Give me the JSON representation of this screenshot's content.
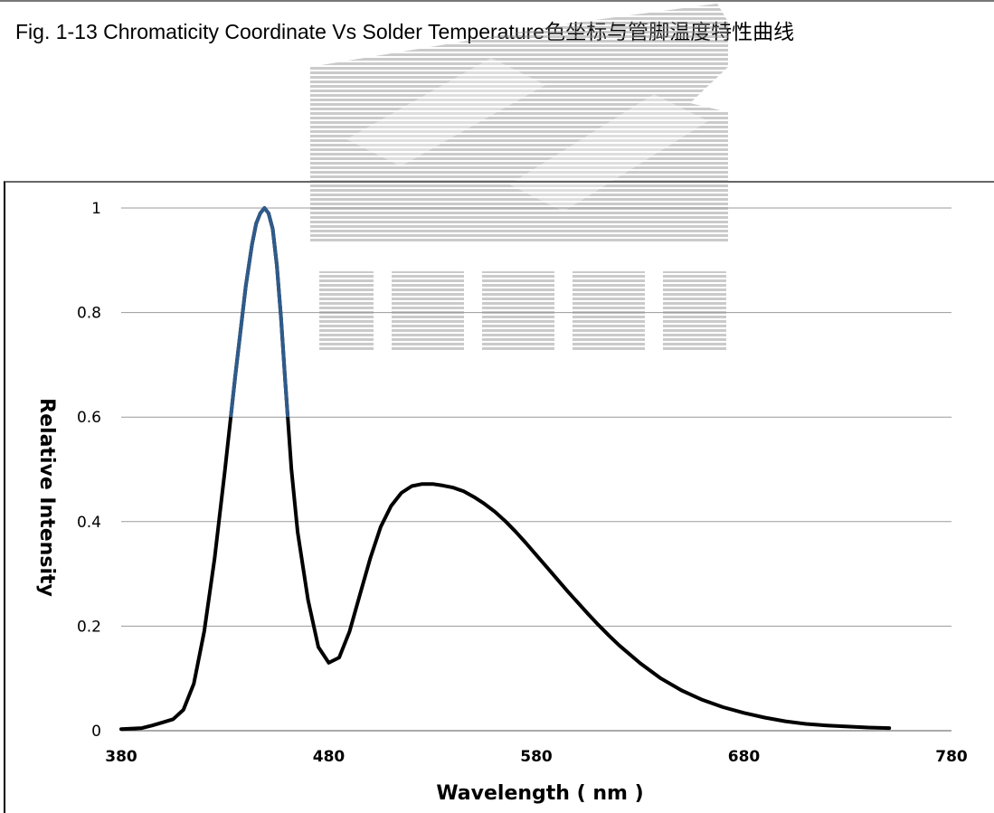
{
  "figure": {
    "caption": "Fig. 1-13 Chromaticity Coordinate Vs Solder Temperature色坐标与管脚温度特性曲线"
  },
  "colors": {
    "peak_segment": "#2f5a8a",
    "curve": "#000000",
    "gridline": "#9a9a9a"
  },
  "chart_data": {
    "type": "line",
    "title": "",
    "xlabel": "Wavelength ( nm )",
    "ylabel": "Relative Intensity",
    "xlim": [
      380,
      780
    ],
    "ylim": [
      0,
      1
    ],
    "xticks": [
      "380",
      "480",
      "580",
      "680",
      "780"
    ],
    "yticks": [
      "0",
      "0.2",
      "0.4",
      "0.6",
      "0.8",
      "1"
    ],
    "grid": "horizontal",
    "legend": "none",
    "series": [
      {
        "x": [
          380,
          390,
          395,
          400,
          405,
          410,
          415,
          420,
          425,
          430,
          435,
          440,
          443,
          445,
          447,
          449,
          451,
          453,
          455,
          457,
          459,
          462,
          465,
          470,
          475,
          480,
          485,
          490,
          495,
          500,
          505,
          510,
          515,
          520,
          525,
          530,
          535,
          540,
          545,
          550,
          555,
          560,
          565,
          570,
          575,
          580,
          585,
          590,
          595,
          600,
          605,
          610,
          615,
          620,
          630,
          640,
          650,
          660,
          670,
          680,
          690,
          700,
          710,
          720,
          730,
          740,
          750
        ],
        "y": [
          0.003,
          0.005,
          0.01,
          0.016,
          0.022,
          0.04,
          0.09,
          0.19,
          0.33,
          0.5,
          0.68,
          0.85,
          0.93,
          0.97,
          0.99,
          1.0,
          0.99,
          0.96,
          0.89,
          0.79,
          0.67,
          0.5,
          0.38,
          0.25,
          0.16,
          0.13,
          0.14,
          0.19,
          0.26,
          0.33,
          0.39,
          0.43,
          0.455,
          0.468,
          0.472,
          0.472,
          0.469,
          0.465,
          0.458,
          0.447,
          0.434,
          0.419,
          0.401,
          0.381,
          0.359,
          0.336,
          0.313,
          0.29,
          0.267,
          0.245,
          0.223,
          0.202,
          0.182,
          0.163,
          0.129,
          0.1,
          0.077,
          0.059,
          0.045,
          0.034,
          0.025,
          0.018,
          0.013,
          0.01,
          0.008,
          0.006,
          0.005
        ]
      }
    ],
    "highlight_above_y": 0.6
  }
}
